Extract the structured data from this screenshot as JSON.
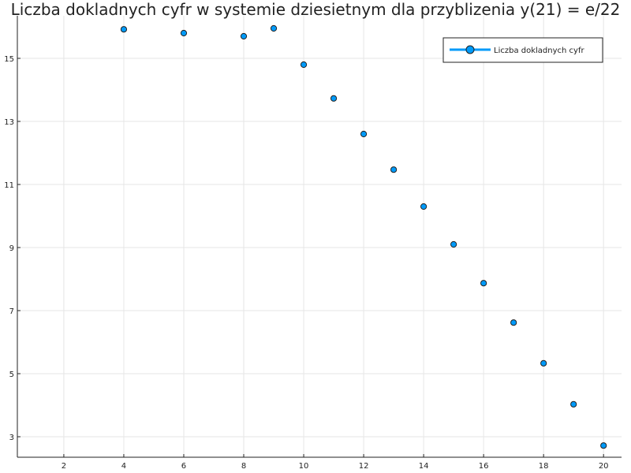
{
  "chart_data": {
    "type": "scatter",
    "title": "Liczba dokladnych cyfr w systemie dziesietnym dla przyblizenia y(21) = e/22",
    "xlabel": "",
    "ylabel": "",
    "xlim": [
      0.45,
      20.6
    ],
    "ylim": [
      2.35,
      16.35
    ],
    "x_ticks": [
      2,
      4,
      6,
      8,
      10,
      12,
      14,
      16,
      18,
      20
    ],
    "y_ticks": [
      3,
      5,
      7,
      9,
      11,
      13,
      15
    ],
    "grid": true,
    "legend_position": "top-right",
    "series": [
      {
        "name": "Liczba dokladnych cyfr",
        "color": "#009af9",
        "x": [
          4,
          6,
          8,
          9,
          10,
          11,
          12,
          13,
          14,
          15,
          16,
          17,
          18,
          19,
          20
        ],
        "y": [
          15.92,
          15.8,
          15.7,
          15.95,
          14.8,
          13.73,
          12.6,
          11.47,
          10.3,
          9.1,
          7.87,
          6.62,
          5.33,
          4.03,
          2.72
        ]
      }
    ]
  }
}
